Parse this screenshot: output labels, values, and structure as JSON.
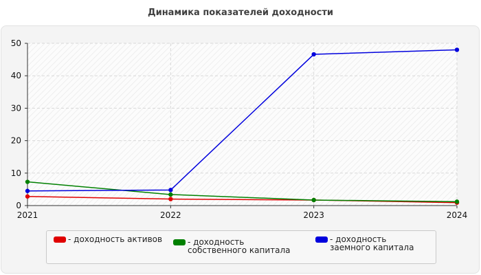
{
  "chart_data": {
    "type": "line",
    "title": "Динамика показателей доходности",
    "xlabel": "",
    "ylabel": "",
    "x": [
      "2021",
      "2022",
      "2023",
      "2024"
    ],
    "ylim": [
      0,
      50
    ],
    "yticks": [
      "0",
      "10",
      "20",
      "30",
      "40",
      "50"
    ],
    "grid": true,
    "legend_position": "bottom",
    "series": [
      {
        "name": "- доходность активов",
        "values": [
          2.8,
          2.0,
          1.7,
          0.9
        ],
        "color": "#e00000"
      },
      {
        "name": "- доходность собственного капитала",
        "values": [
          7.3,
          3.4,
          1.7,
          1.2
        ],
        "color": "#008000"
      },
      {
        "name": "- доходность заемного капитала",
        "values": [
          4.5,
          4.8,
          46.6,
          48.0
        ],
        "color": "#0000dd"
      }
    ]
  }
}
